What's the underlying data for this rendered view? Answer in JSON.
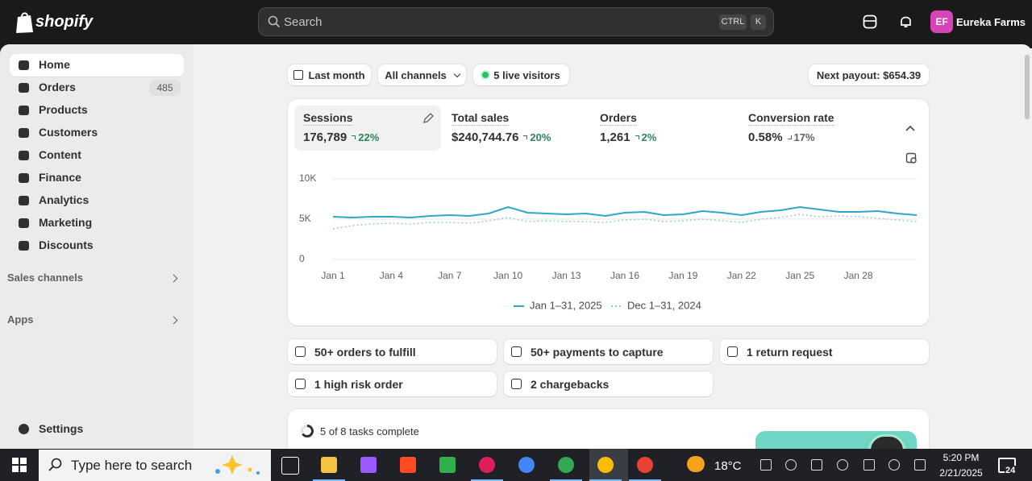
{
  "topbar": {
    "brand": "shopify",
    "search": "Search",
    "shortcut": [
      "CTRL",
      "K"
    ],
    "avatar": "EF",
    "store": "Eureka Farms"
  },
  "sidebar": {
    "nav": [
      {
        "label": "Home"
      },
      {
        "label": "Orders",
        "badge": 485
      },
      {
        "label": "Products"
      },
      {
        "label": "Customers"
      },
      {
        "label": "Content"
      },
      {
        "label": "Finance"
      },
      {
        "label": "Analytics"
      },
      {
        "label": "Marketing"
      },
      {
        "label": "Discounts"
      }
    ],
    "sections": [
      "Sales channels",
      "Apps"
    ],
    "settings": "Settings"
  },
  "toolbar": {
    "period": "Last month",
    "channels": "All channels",
    "visitors": "5 live visitors",
    "payout": "Next payout: $654.39"
  },
  "metrics": [
    {
      "label": "Sessions",
      "value": "176,789",
      "change": "22%",
      "trend": "up"
    },
    {
      "label": "Total sales",
      "value": "$240,744.76",
      "change": "20%",
      "trend": "up"
    },
    {
      "label": "Orders",
      "value": "1,261",
      "change": "2%",
      "trend": "up"
    },
    {
      "label": "Conversion rate",
      "value": "0.58%",
      "change": "17%",
      "trend": "down"
    }
  ],
  "chart_data": {
    "type": "line",
    "categories": [
      "Jan 1",
      null,
      null,
      "Jan 4",
      null,
      null,
      "Jan 7",
      null,
      null,
      "Jan 10",
      null,
      null,
      "Jan 13",
      null,
      null,
      "Jan 16",
      null,
      null,
      "Jan 19",
      null,
      null,
      "Jan 22",
      null,
      null,
      "Jan 25",
      null,
      null,
      "Jan 28",
      null,
      null,
      null
    ],
    "series": [
      {
        "name": "Jan 1–31, 2025",
        "color": "#2fa7c9",
        "dash": false,
        "values": [
          5300,
          5200,
          5300,
          5300,
          5200,
          5400,
          5500,
          5400,
          5700,
          6500,
          5800,
          5700,
          5600,
          5700,
          5400,
          5800,
          5900,
          5500,
          5600,
          6000,
          5800,
          5500,
          5900,
          6100,
          6500,
          6200,
          5900,
          5900,
          6000,
          5700,
          5500
        ]
      },
      {
        "name": "Dec 1–31, 2024",
        "color": "#93cfe3",
        "dash": true,
        "values": [
          3800,
          4200,
          4400,
          4500,
          4400,
          4600,
          4600,
          4500,
          4800,
          5200,
          4700,
          4800,
          4700,
          4700,
          4600,
          4900,
          5000,
          4700,
          4800,
          5000,
          4800,
          4600,
          5000,
          5200,
          5600,
          5300,
          5400,
          5300,
          5100,
          4900,
          4700
        ]
      }
    ],
    "ylim": [
      0,
      10000
    ],
    "yticks": [
      0,
      {
        "value": 5000,
        "label": "5K"
      },
      {
        "value": 10000,
        "label": "10K"
      }
    ],
    "grid": true
  },
  "actions": [
    "50+ orders to fulfill",
    "50+ payments to capture",
    "1 return request",
    "1 high risk order",
    "2 chargebacks"
  ],
  "tasks": "5 of 8 tasks complete",
  "taskbar": {
    "search": "Type here to search",
    "weather": "18°C",
    "time": "5:20 PM",
    "date": "2/21/2025",
    "notifications": "24"
  }
}
